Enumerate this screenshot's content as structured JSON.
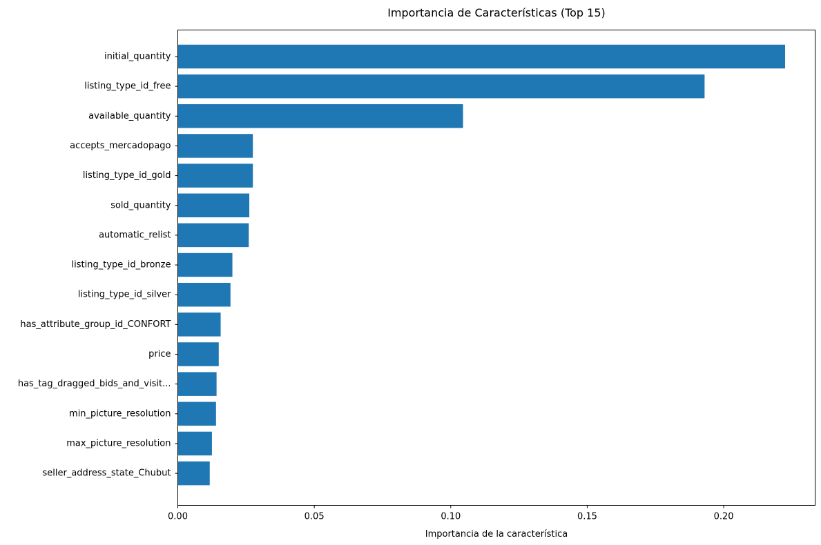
{
  "chart_data": {
    "type": "bar",
    "orientation": "horizontal",
    "title": "Importancia de Características (Top 15)",
    "xlabel": "Importancia de la característica",
    "ylabel": "",
    "xlim": [
      0,
      0.2335
    ],
    "xticks": [
      "0.00",
      "0.05",
      "0.10",
      "0.15",
      "0.20"
    ],
    "xtick_values": [
      0,
      0.05,
      0.1,
      0.15,
      0.2
    ],
    "grid": false,
    "bar_color": "#1f77b4",
    "categories": [
      "initial_quantity",
      "listing_type_id_free",
      "available_quantity",
      "accepts_mercadopago",
      "listing_type_id_gold",
      "sold_quantity",
      "automatic_relist",
      "listing_type_id_bronze",
      "listing_type_id_silver",
      "has_attribute_group_id_CONFORT",
      "price",
      "has_tag_dragged_bids_and_visit...",
      "min_picture_resolution",
      "max_picture_resolution",
      "seller_address_state_Chubut"
    ],
    "values": [
      0.2225,
      0.193,
      0.1045,
      0.0275,
      0.0275,
      0.0262,
      0.026,
      0.02,
      0.0193,
      0.0157,
      0.015,
      0.0142,
      0.014,
      0.0125,
      0.0117
    ]
  }
}
